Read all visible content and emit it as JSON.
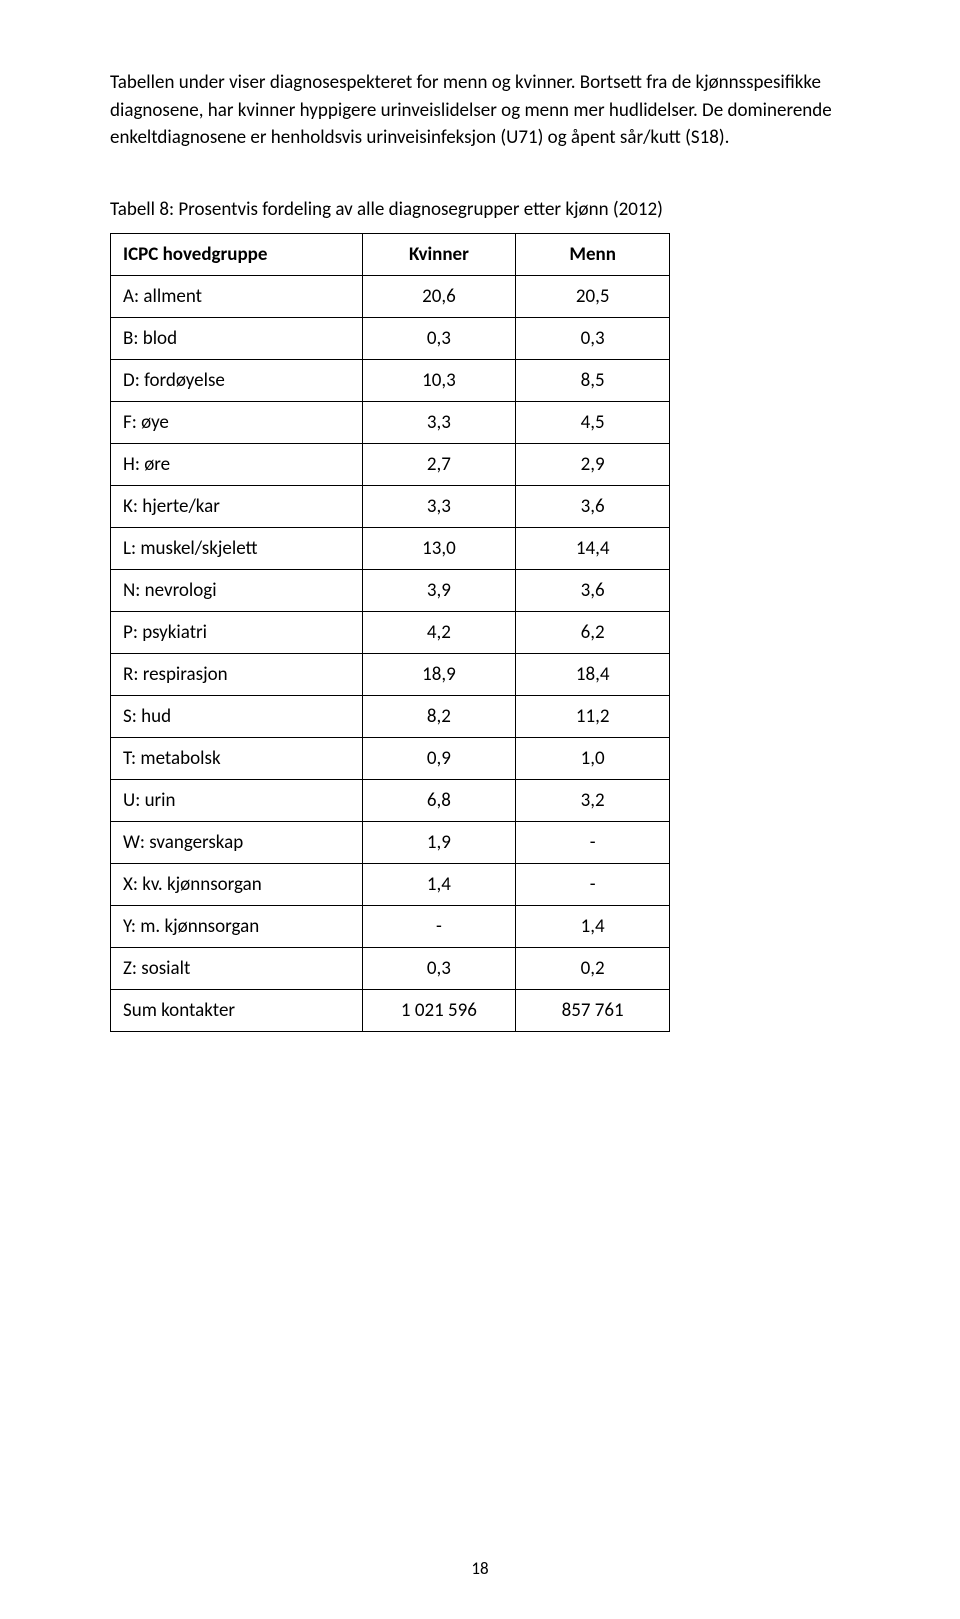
{
  "intro": {
    "text": "Tabellen under viser diagnosespekteret for menn og kvinner. Bortsett fra de kjønnsspesifikke diagnosene, har kvinner hyppigere urinveislidelser og menn mer hudlidelser. De dominerende enkeltdiagnosene er henholdsvis urinveisinfeksjon (U71) og åpent sår/kutt (S18)."
  },
  "table": {
    "caption": "Tabell 8: Prosentvis fordeling av alle diagnosegrupper etter kjønn (2012)",
    "columns": [
      "ICPC hovedgruppe",
      "Kvinner",
      "Menn"
    ],
    "rows": [
      {
        "label": "A: allment",
        "kvinner": "20,6",
        "menn": "20,5"
      },
      {
        "label": "B: blod",
        "kvinner": "0,3",
        "menn": "0,3"
      },
      {
        "label": "D: fordøyelse",
        "kvinner": "10,3",
        "menn": "8,5"
      },
      {
        "label": "F: øye",
        "kvinner": "3,3",
        "menn": "4,5"
      },
      {
        "label": "H: øre",
        "kvinner": "2,7",
        "menn": "2,9"
      },
      {
        "label": "K: hjerte/kar",
        "kvinner": "3,3",
        "menn": "3,6"
      },
      {
        "label": "L: muskel/skjelett",
        "kvinner": "13,0",
        "menn": "14,4"
      },
      {
        "label": "N: nevrologi",
        "kvinner": "3,9",
        "menn": "3,6"
      },
      {
        "label": "P: psykiatri",
        "kvinner": "4,2",
        "menn": "6,2"
      },
      {
        "label": "R: respirasjon",
        "kvinner": "18,9",
        "menn": "18,4"
      },
      {
        "label": "S: hud",
        "kvinner": "8,2",
        "menn": "11,2"
      },
      {
        "label": "T: metabolsk",
        "kvinner": "0,9",
        "menn": "1,0"
      },
      {
        "label": "U: urin",
        "kvinner": "6,8",
        "menn": "3,2"
      },
      {
        "label": "W: svangerskap",
        "kvinner": "1,9",
        "menn": "-"
      },
      {
        "label": "X: kv. kjønnsorgan",
        "kvinner": "1,4",
        "menn": "-"
      },
      {
        "label": "Y: m. kjønnsorgan",
        "kvinner": "-",
        "menn": "1,4"
      },
      {
        "label": "Z: sosialt",
        "kvinner": "0,3",
        "menn": "0,2"
      },
      {
        "label": "Sum kontakter",
        "kvinner": "1 021 596",
        "menn": "857 761"
      }
    ],
    "style": {
      "border_color": "#000000",
      "font_size_pt": 11,
      "col_widths_pct": [
        45,
        27.5,
        27.5
      ]
    }
  },
  "page_number": "18"
}
